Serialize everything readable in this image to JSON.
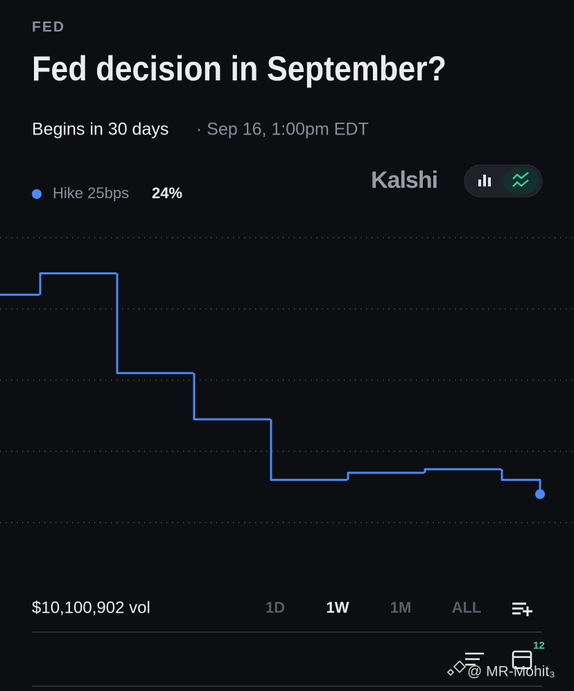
{
  "header": {
    "category": "FED",
    "title": "Fed decision in September?",
    "begins": "Begins in 30 days",
    "date": "· Sep 16, 1:00pm EDT"
  },
  "brand": "Kalshi",
  "chart_data": {
    "type": "line",
    "categories": [
      null,
      null,
      null,
      null,
      null,
      null,
      null,
      null,
      null
    ],
    "series": [
      {
        "name": "Hike 25bps",
        "color": "#4a8af4",
        "values": [
          52,
          55,
          41,
          34.5,
          26,
          27,
          27.5,
          26,
          24
        ]
      }
    ],
    "current_value_label": "24%",
    "ylim": [
      10,
      65
    ],
    "yticks": [
      20,
      30,
      40,
      50,
      60
    ],
    "grid": true
  },
  "footer": {
    "volume": "$10,100,902 vol",
    "ranges": [
      "1D",
      "1W",
      "1M",
      "ALL"
    ],
    "badge": "12",
    "watermark": "@ MR-Mohit₃"
  }
}
